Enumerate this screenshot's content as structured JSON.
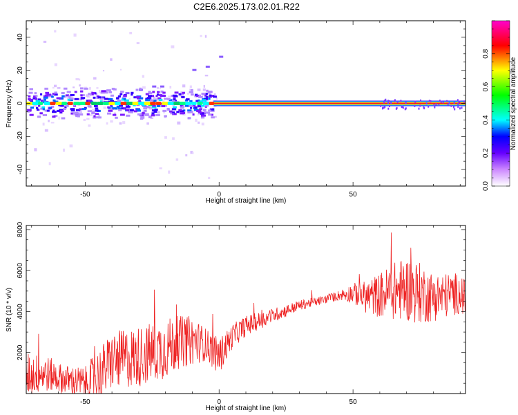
{
  "title": "C2E6.2025.173.02.01.R22",
  "chart_data": [
    {
      "type": "heatmap",
      "xlabel": "Height of straight line (km)",
      "ylabel": "Frequency (Hz)",
      "xlim": [
        -72,
        92
      ],
      "ylim": [
        -50,
        50
      ],
      "xticks": [
        -50,
        0,
        50
      ],
      "yticks": [
        -40,
        -20,
        0,
        20,
        40
      ],
      "colorbar": {
        "label": "Normalized spectral amplitude",
        "range": [
          0,
          1
        ],
        "ticks": [
          "0.0",
          "0.2",
          "0.4",
          "0.6",
          "0.8"
        ],
        "colors": [
          "#ffffff",
          "#8800ff",
          "#0000ff",
          "#00ffff",
          "#00ff00",
          "#ffff00",
          "#ff0000",
          "#ff00cc"
        ]
      },
      "band_center_hz": 0
    },
    {
      "type": "line",
      "xlabel": "Height of straight line (km)",
      "ylabel": "SNR (10 * v/v)",
      "xlim": [
        -72,
        92
      ],
      "ylim": [
        0,
        8200
      ],
      "xticks": [
        -50,
        0,
        50
      ],
      "yticks": [
        2000,
        4000,
        6000,
        8000
      ],
      "series_color": "#ee2222",
      "trend": {
        "x": [
          -72,
          -65,
          -58,
          -50,
          -45,
          -40,
          -30,
          -20,
          -15,
          -10,
          -5,
          0,
          5,
          10,
          20,
          30,
          40,
          45,
          50,
          55,
          60,
          65,
          70,
          75,
          80,
          85,
          90,
          92
        ],
        "y": [
          900,
          1000,
          700,
          500,
          900,
          1600,
          1800,
          2200,
          2500,
          2600,
          2400,
          1800,
          2800,
          3300,
          3800,
          4300,
          4600,
          4800,
          4900,
          4700,
          4800,
          5000,
          5100,
          4900,
          4700,
          4800,
          4900,
          4600
        ]
      },
      "noise_amplitude": [
        1100,
        900,
        700,
        800,
        1300,
        1400,
        1500,
        1500,
        1300,
        1200,
        800,
        900,
        600,
        500,
        350,
        250,
        200,
        250,
        500,
        800,
        1100,
        1400,
        1600,
        1500,
        1200,
        1100,
        1000,
        900
      ]
    }
  ]
}
